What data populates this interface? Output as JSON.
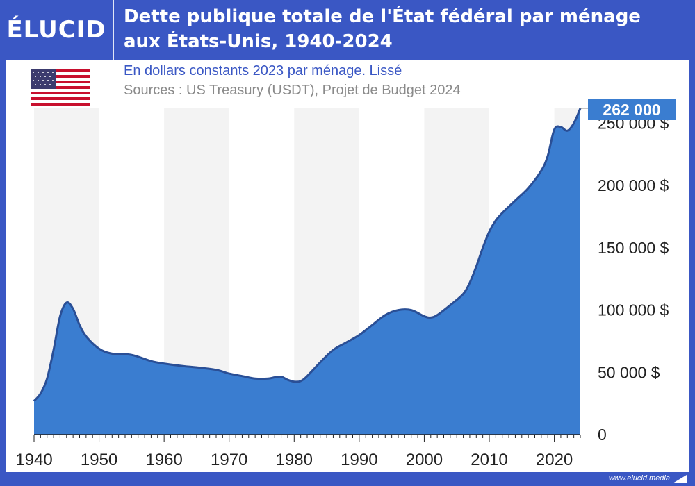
{
  "header": {
    "logo": "ÉLUCID",
    "title_line1": "Dette publique totale de l'État fédéral par ménage",
    "title_line2": "aux États-Unis, 1940-2024"
  },
  "subtitle": "En dollars constants 2023 par ménage. Lissé",
  "sources": "Sources : US Treasury (USDT), Projet de Budget 2024",
  "footer": {
    "site": "www.elucid.media"
  },
  "colors": {
    "brand": "#3a57c4",
    "area_fill": "#3a7dd0",
    "area_stroke": "#2a4f96",
    "band": "#f3f3f3",
    "callout": "#3a7dd0"
  },
  "chart_data": {
    "type": "area",
    "title": "Dette publique totale de l'État fédéral par ménage aux États-Unis, 1940-2024",
    "subtitle": "En dollars constants 2023 par ménage. Lissé",
    "xlim": [
      1940,
      2024
    ],
    "ylim": [
      0,
      262000
    ],
    "x_ticks": [
      1940,
      1950,
      1960,
      1970,
      1980,
      1990,
      2000,
      2010,
      2020
    ],
    "y_ticks": [
      {
        "value": 0,
        "label": "0"
      },
      {
        "value": 50000,
        "label": "50 000 $"
      },
      {
        "value": 100000,
        "label": "100 000 $"
      },
      {
        "value": 150000,
        "label": "150 000 $"
      },
      {
        "value": 200000,
        "label": "200 000 $"
      },
      {
        "value": 250000,
        "label": "250 000 $"
      }
    ],
    "callout": {
      "x": 2024,
      "value": 262000,
      "label": "262 000"
    },
    "grid": false,
    "series": [
      {
        "x": [
          1940,
          1941,
          1942,
          1943,
          1944,
          1945,
          1946,
          1947,
          1948,
          1950,
          1952,
          1955,
          1958,
          1960,
          1963,
          1965,
          1968,
          1970,
          1972,
          1974,
          1976,
          1977,
          1978,
          1979,
          1980,
          1981,
          1982,
          1984,
          1986,
          1988,
          1990,
          1992,
          1994,
          1996,
          1998,
          2000,
          2001,
          2002,
          2004,
          2006,
          2007,
          2008,
          2009,
          2010,
          2011,
          2012,
          2014,
          2016,
          2018,
          2019,
          2020,
          2021,
          2022,
          2023,
          2024
        ],
        "y": [
          27000,
          33000,
          45000,
          68000,
          95000,
          106000,
          101000,
          88000,
          79000,
          69000,
          65000,
          64000,
          59000,
          57000,
          55000,
          54000,
          52000,
          49000,
          47000,
          45000,
          45000,
          46000,
          46500,
          44000,
          42500,
          43000,
          47000,
          58000,
          68000,
          74000,
          80000,
          88000,
          96000,
          100000,
          100000,
          95000,
          94000,
          96000,
          104000,
          113000,
          122000,
          135000,
          150000,
          163000,
          172000,
          178000,
          188000,
          198000,
          212000,
          224000,
          245000,
          247000,
          244000,
          250000,
          262000
        ]
      }
    ]
  }
}
